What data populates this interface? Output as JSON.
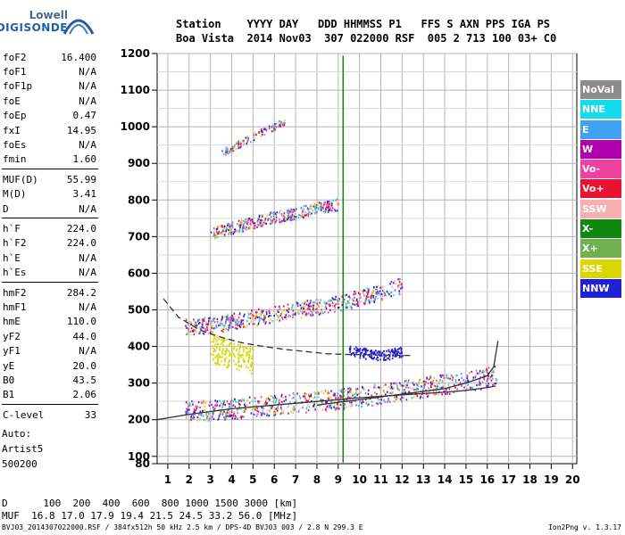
{
  "logo": {
    "line1": "Lowell",
    "line2": "DIGISONDE"
  },
  "header": {
    "row1": "Station    YYYY DAY   DDD HHMMSS P1   FFS S AXN PPS IGA PS",
    "row2": "Boa Vista  2014 Nov03  307 022000 RSF  005 2 713 100 03+ C0"
  },
  "params": {
    "group1": [
      {
        "k": "foF2",
        "v": "16.400"
      },
      {
        "k": "foF1",
        "v": "N/A"
      },
      {
        "k": "foF1p",
        "v": "N/A"
      },
      {
        "k": "foE",
        "v": "N/A"
      },
      {
        "k": "foEp",
        "v": "0.47"
      },
      {
        "k": "fxI",
        "v": "14.95"
      },
      {
        "k": "foEs",
        "v": "N/A"
      },
      {
        "k": "fmin",
        "v": "1.60"
      }
    ],
    "group2": [
      {
        "k": "MUF(D)",
        "v": "55.99"
      },
      {
        "k": "M(D)",
        "v": "3.41"
      },
      {
        "k": "D",
        "v": "N/A"
      }
    ],
    "group3": [
      {
        "k": "h`F",
        "v": "224.0"
      },
      {
        "k": "h`F2",
        "v": "224.0"
      },
      {
        "k": "h`E",
        "v": "N/A"
      },
      {
        "k": "h`Es",
        "v": "N/A"
      }
    ],
    "group4": [
      {
        "k": "hmF2",
        "v": "284.2"
      },
      {
        "k": "hmF1",
        "v": "N/A"
      },
      {
        "k": "hmE",
        "v": "110.0"
      },
      {
        "k": "yF2",
        "v": "44.0"
      },
      {
        "k": "yF1",
        "v": "N/A"
      },
      {
        "k": "yE",
        "v": "20.0"
      },
      {
        "k": "B0",
        "v": "43.5"
      },
      {
        "k": "B1",
        "v": "2.06"
      }
    ],
    "group5": [
      {
        "k": "C-level",
        "v": "33"
      }
    ]
  },
  "auto": {
    "line1": "Auto:",
    "line2": "Artist5",
    "line3": "500200"
  },
  "legend": [
    {
      "label": "NoVal",
      "color": "#8c8c8c"
    },
    {
      "label": "NNE",
      "color": "#12dcec"
    },
    {
      "label": "E",
      "color": "#3fa2f2"
    },
    {
      "label": "W",
      "color": "#b000b0"
    },
    {
      "label": "Vo-",
      "color": "#f040a0"
    },
    {
      "label": "Vo+",
      "color": "#ee1030"
    },
    {
      "label": "SSW",
      "color": "#f7b0b0"
    },
    {
      "label": "X-",
      "color": "#108810"
    },
    {
      "label": "X+",
      "color": "#70b050"
    },
    {
      "label": "SSE",
      "color": "#d8d800"
    },
    {
      "label": "NNW",
      "color": "#2020d8"
    }
  ],
  "bottom": {
    "row1": "D      100  200  400  600  800 1000 1500 3000 [km]",
    "row2": "MUF  16.8 17.0 17.9 19.4 21.5 24.5 33.2 56.0 [MHz]",
    "foot_left": "BVJ03_2014307022000.RSF / 384fx512h 50 kHz 2.5 km / DPS-4D BVJ03 003 / 2.8 N 299.3 E",
    "foot_right": "Ion2Png v. 1.3.17"
  },
  "chart_data": {
    "type": "scatter",
    "title": "",
    "xlabel": "",
    "ylabel": "",
    "xlim": [
      0.5,
      20.2
    ],
    "ylim": [
      80,
      1200
    ],
    "grid": true,
    "x_ticks": [
      1,
      2,
      3,
      4,
      5,
      6,
      7,
      8,
      9,
      10,
      11,
      12,
      13,
      14,
      15,
      16,
      17,
      18,
      19,
      20
    ],
    "y_ticks": [
      80,
      100,
      200,
      300,
      400,
      500,
      600,
      700,
      800,
      900,
      1000,
      1100,
      1200
    ],
    "traces": [
      {
        "name": "O-trace F2",
        "x": [
          1.8,
          3,
          4,
          5,
          6,
          7,
          8,
          9,
          10,
          11,
          12,
          13,
          14,
          15,
          16,
          16.4
        ],
        "y": [
          225,
          228,
          232,
          238,
          243,
          248,
          252,
          258,
          265,
          272,
          280,
          290,
          298,
          305,
          318,
          330
        ]
      },
      {
        "name": "2nd hop",
        "x": [
          1.8,
          3,
          4,
          5,
          6,
          7,
          8,
          9,
          10,
          11,
          12
        ],
        "y": [
          455,
          460,
          470,
          480,
          490,
          500,
          510,
          520,
          535,
          550,
          570
        ]
      },
      {
        "name": "3rd hop",
        "x": [
          3,
          4,
          5,
          6,
          7,
          8,
          9
        ],
        "y": [
          710,
          725,
          740,
          755,
          765,
          780,
          790
        ]
      },
      {
        "name": "4th hop",
        "x": [
          3.5,
          4.5,
          5.5,
          6.5
        ],
        "y": [
          930,
          960,
          990,
          1015
        ]
      },
      {
        "name": "oblique echoes",
        "x": [
          9.5,
          10,
          10.5,
          11,
          11.5,
          12
        ],
        "y": [
          390,
          385,
          380,
          375,
          382,
          388
        ]
      },
      {
        "name": "spread",
        "x": [
          3,
          3.5,
          4,
          4.5,
          5
        ],
        "y": [
          400,
          390,
          380,
          370,
          360
        ]
      }
    ],
    "profile_dashed": {
      "x": [
        0.8,
        1.5,
        2.5,
        3.5,
        4.5,
        5.5,
        6.5,
        7.5,
        8.5,
        9.5,
        10.5,
        11.5,
        12.5
      ],
      "y": [
        530,
        480,
        445,
        425,
        410,
        400,
        392,
        386,
        380,
        378,
        377,
        376,
        375
      ]
    },
    "profile_solid": {
      "x": [
        0.5,
        2,
        4,
        6,
        8,
        10,
        12,
        14,
        15,
        16,
        16.4
      ],
      "y": [
        200,
        215,
        230,
        240,
        250,
        260,
        268,
        275,
        280,
        288,
        292
      ]
    },
    "profile_solid2": {
      "x": [
        8,
        10,
        12,
        14,
        15,
        16,
        16.3,
        16.5
      ],
      "y": [
        240,
        255,
        270,
        285,
        300,
        320,
        345,
        415
      ]
    },
    "vertical_marker_x": 9.2
  }
}
